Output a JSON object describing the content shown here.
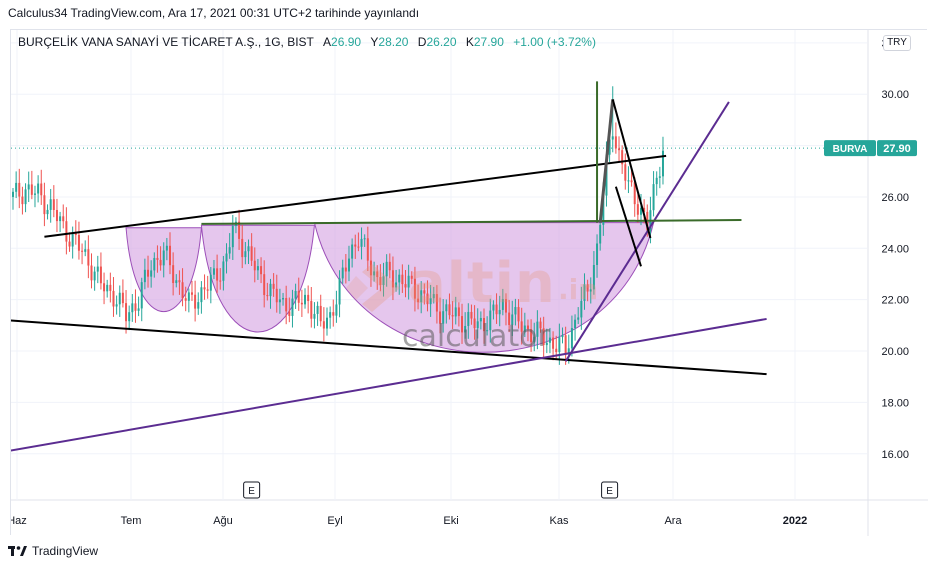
{
  "header": {
    "published": "Calculus34 TradingView.com, Ara 17, 2021 00:31 UTC+2 tarihinde yayınlandı"
  },
  "symbol": {
    "name": "BURÇELİK VANA SANAYİ VE TİCARET A.Ş., 1G, BIST",
    "open_label": "A",
    "open": "26.90",
    "high_label": "Y",
    "high": "28.20",
    "low_label": "D",
    "low": "26.20",
    "close_label": "K",
    "close": "27.90",
    "change": "+1.00 (+3.72%)"
  },
  "currency": "TRY",
  "price_tag": {
    "ticker": "BURVA",
    "value": "27.90"
  },
  "footer": {
    "brand": "TradingView"
  },
  "watermark": {
    "word": "altin",
    "suffix": ".in",
    "sub": "calculator"
  },
  "colors": {
    "up": "#26a69a",
    "down": "#ef5350",
    "cup_fill": "#d7a7e4",
    "cup_stroke": "#9c4fb8",
    "trend_purple": "#5b2c91",
    "resistance_green": "#3a6b2a",
    "trend_black": "#000000",
    "tag_bg": "#26a69a"
  },
  "chart_data": {
    "type": "candlestick",
    "y_axis": {
      "min": 14.2,
      "max": 32.5,
      "ticks": [
        "32.00",
        "30.00",
        "28.00",
        "26.00",
        "24.00",
        "22.00",
        "20.00",
        "18.00",
        "16.00"
      ]
    },
    "x_axis": {
      "ticks": [
        "Haz",
        "Tem",
        "Ağu",
        "Eyl",
        "Eki",
        "Kas",
        "Ara",
        "2022"
      ]
    },
    "earnings_markers": [
      "E",
      "E"
    ],
    "last_price": 27.9,
    "price_path": [
      [
        0,
        26.0
      ],
      [
        4,
        26.3
      ],
      [
        8,
        26.1
      ],
      [
        12,
        25.6
      ],
      [
        16,
        24.8
      ],
      [
        20,
        24.2
      ],
      [
        24,
        23.5
      ],
      [
        28,
        22.6
      ],
      [
        32,
        22.2
      ],
      [
        36,
        21.4
      ],
      [
        40,
        22.0
      ],
      [
        44,
        23.4
      ],
      [
        48,
        23.8
      ],
      [
        52,
        22.8
      ],
      [
        56,
        21.8
      ],
      [
        60,
        22.3
      ],
      [
        64,
        22.8
      ],
      [
        68,
        23.6
      ],
      [
        70,
        24.8
      ],
      [
        74,
        24.0
      ],
      [
        78,
        23.0
      ],
      [
        82,
        22.3
      ],
      [
        86,
        21.8
      ],
      [
        90,
        21.9
      ],
      [
        94,
        22.0
      ],
      [
        98,
        21.0
      ],
      [
        101,
        21.4
      ],
      [
        104,
        22.4
      ],
      [
        107,
        23.8
      ],
      [
        110,
        24.4
      ],
      [
        113,
        23.6
      ],
      [
        116,
        22.8
      ],
      [
        120,
        23.0
      ],
      [
        124,
        22.7
      ],
      [
        128,
        22.4
      ],
      [
        132,
        22.0
      ],
      [
        136,
        21.6
      ],
      [
        140,
        21.4
      ],
      [
        144,
        21.2
      ],
      [
        148,
        21.0
      ],
      [
        152,
        21.3
      ],
      [
        156,
        21.8
      ],
      [
        160,
        21.2
      ],
      [
        164,
        20.8
      ],
      [
        168,
        20.6
      ],
      [
        172,
        20.3
      ],
      [
        176,
        20.1
      ],
      [
        178,
        20.8
      ],
      [
        180,
        21.6
      ],
      [
        183,
        22.3
      ],
      [
        186,
        24.0
      ],
      [
        189,
        27.2
      ],
      [
        191,
        28.8
      ],
      [
        193,
        27.6
      ],
      [
        196,
        26.4
      ],
      [
        199,
        25.8
      ],
      [
        202,
        24.8
      ],
      [
        205,
        26.8
      ],
      [
        207,
        27.9
      ]
    ],
    "drawings": [
      {
        "name": "upper-wedge-line",
        "color": "#000000",
        "points": [
          [
            10,
            24.45
          ],
          [
            208,
            27.6
          ]
        ]
      },
      {
        "name": "lower-wedge-line",
        "color": "#000000",
        "points": [
          [
            -2,
            21.2
          ],
          [
            240,
            19.1
          ]
        ]
      },
      {
        "name": "purple-support-line",
        "color": "#5b2c91",
        "points": [
          [
            -2,
            16.1
          ],
          [
            240,
            21.25
          ]
        ]
      },
      {
        "name": "purple-breakout-line",
        "color": "#5b2c91",
        "points": [
          [
            176,
            19.6
          ],
          [
            228,
            29.7
          ]
        ]
      },
      {
        "name": "neckline-green",
        "color": "#3a6b2a",
        "points": [
          [
            60,
            24.95
          ],
          [
            232,
            25.1
          ]
        ]
      }
    ],
    "cups": [
      {
        "from": 36,
        "to": 60,
        "bottom": 21.5,
        "top": 24.8
      },
      {
        "from": 60,
        "to": 96,
        "bottom": 20.7,
        "top": 24.9
      },
      {
        "from": 96,
        "to": 204,
        "bottom": 19.9,
        "top": 25.0
      }
    ]
  }
}
